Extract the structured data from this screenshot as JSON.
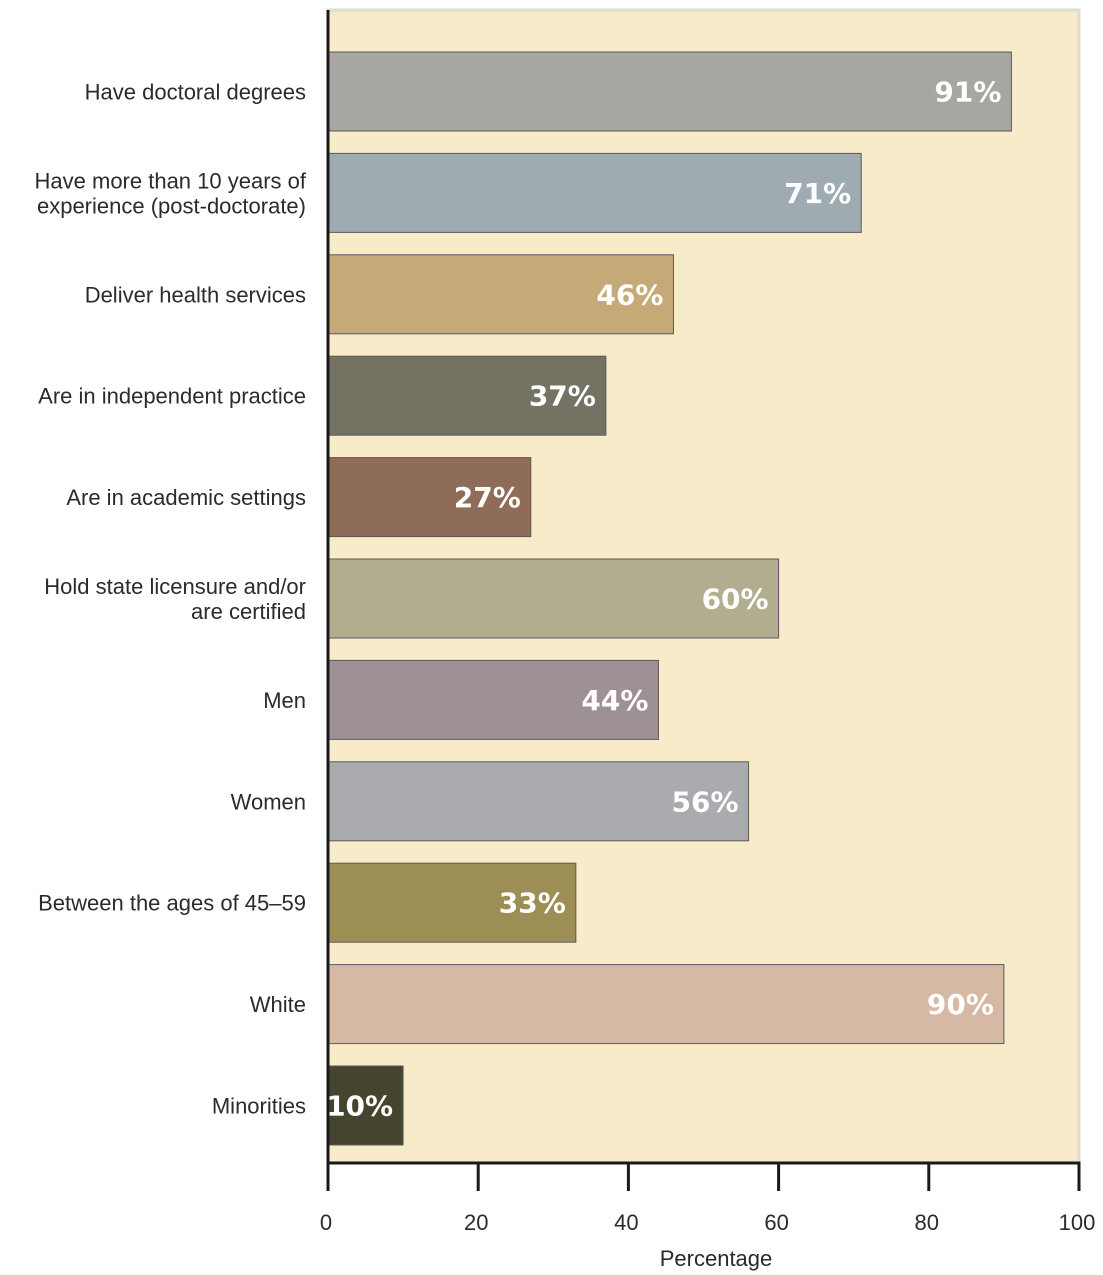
{
  "chart_data": {
    "type": "bar",
    "orientation": "horizontal",
    "categories": [
      "Have doctoral degrees",
      "Have more than 10 years of experience (post-doctorate)",
      "Deliver health services",
      "Are in independent practice",
      "Are in academic settings",
      "Hold state licensure and/or are certified",
      "Men",
      "Women",
      "Between the ages of 45–59",
      "White",
      "Minorities"
    ],
    "category_label_lines": [
      [
        "Have doctoral degrees"
      ],
      [
        "Have more than 10 years of",
        "experience (post-doctorate)"
      ],
      [
        "Deliver health services"
      ],
      [
        "Are in independent practice"
      ],
      [
        "Are in academic settings"
      ],
      [
        "Hold state licensure and/or",
        "are certified"
      ],
      [
        "Men"
      ],
      [
        "Women"
      ],
      [
        "Between the ages of 45–59"
      ],
      [
        "White"
      ],
      [
        "Minorities"
      ]
    ],
    "values": [
      91,
      71,
      46,
      37,
      27,
      60,
      44,
      56,
      33,
      90,
      10
    ],
    "data_labels": [
      "91%",
      "71%",
      "46%",
      "37%",
      "27%",
      "60%",
      "44%",
      "56%",
      "33%",
      "90%",
      "10%"
    ],
    "colors": [
      "#a8a6a2",
      "#9eabb1",
      "#c5a977",
      "#737263",
      "#8f6c57",
      "#b2ad8e",
      "#9e9097",
      "#aaabae",
      "#9c8e55",
      "#d5b9a4",
      "#45442f"
    ],
    "xlabel": "Percentage",
    "ylabel": "",
    "title": "",
    "xlim": [
      0,
      100
    ],
    "xticks": [
      0,
      20,
      40,
      60,
      80,
      100
    ],
    "xtick_labels": [
      "0",
      "20",
      "40",
      "60",
      "80",
      "100"
    ],
    "grid": false,
    "background_color": "#f7ebca",
    "border_color": "#dedbd2"
  }
}
